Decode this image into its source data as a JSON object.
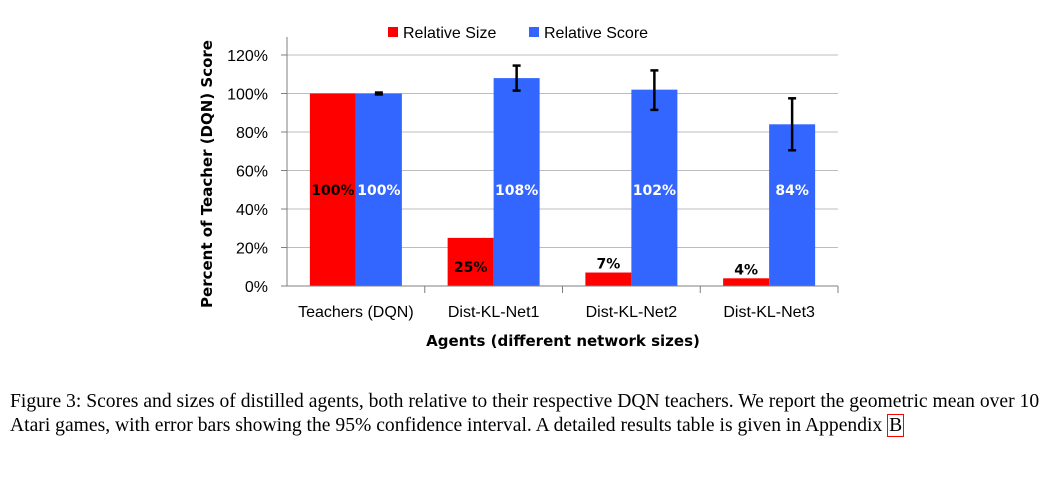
{
  "chart_data": {
    "type": "bar",
    "categories": [
      "Teachers (DQN)",
      "Dist-KL-Net1",
      "Dist-KL-Net2",
      "Dist-KL-Net3"
    ],
    "series": [
      {
        "name": "Relative Size",
        "color": "#ff0000",
        "label_color": "#000000",
        "values": [
          100,
          25,
          7,
          4
        ],
        "labels": [
          "100%",
          "25%",
          "7%",
          "4%"
        ]
      },
      {
        "name": "Relative Score",
        "color": "#3366ff",
        "label_color": "#ffffff",
        "values": [
          100,
          108,
          102,
          84
        ],
        "labels": [
          "100%",
          "108%",
          "102%",
          "84%"
        ],
        "error_low": [
          99.5,
          101.5,
          91.5,
          70.5
        ],
        "error_high": [
          100.5,
          114.5,
          112,
          97.5
        ]
      }
    ],
    "xlabel": "Agents (different network sizes)",
    "ylabel": "Percent of Teacher (DQN) Score",
    "ylim": [
      0,
      120
    ],
    "yticks": [
      "0%",
      "20%",
      "40%",
      "60%",
      "80%",
      "100%",
      "120%"
    ],
    "grid": true,
    "legend_position": "top"
  },
  "caption": {
    "text": "Figure 3: Scores and sizes of distilled agents, both relative to their respective DQN teachers. We report the geometric mean over 10 Atari games, with error bars showing the 95% confidence interval. A detailed results table is given in Appendix ",
    "link_text": "B"
  }
}
